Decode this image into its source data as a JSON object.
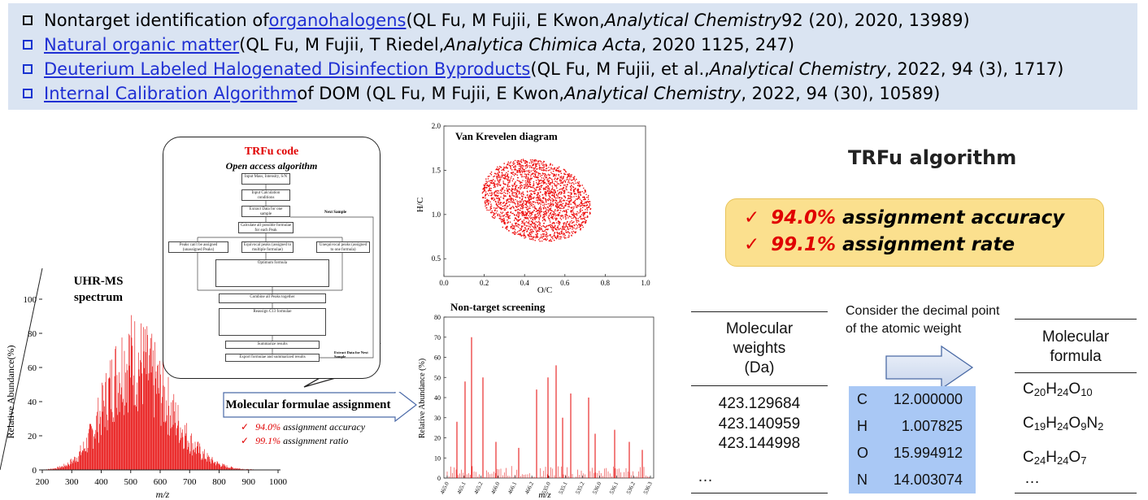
{
  "references": [
    {
      "link": "organohalogens",
      "pre": "Nontarget identification of ",
      "post_a": " (QL Fu, M Fujii, E Kwon, ",
      "journal": "Analytical Chemistry",
      "post_b": " 92 (20), 2020, 13989)"
    },
    {
      "link": "Natural organic matter ",
      "pre": "",
      "post_a": "(QL Fu, M Fujii, T Riedel, ",
      "journal": "Analytica Chimica Acta",
      "post_b": ", 2020 1125, 247)"
    },
    {
      "link": "Deuterium Labeled Halogenated Disinfection Byproducts ",
      "pre": "",
      "post_a": "(QL Fu, M Fujii, et al., ",
      "journal": "Analytical Chemistry",
      "post_b": ", 2022, 94 (3), 1717)"
    },
    {
      "link": "Internal Calibration Algorithm ",
      "pre": "",
      "post_a": "of DOM (QL Fu, M Fujii, E Kwon, ",
      "journal": "Analytical Chemistry",
      "post_b": " , 2022, 94 (30), 10589)"
    }
  ],
  "colors": {
    "link": "#1f2fd3",
    "ref_bg": "#dae4f2",
    "red": "#e00000",
    "algo_bg": "#fbe08e",
    "elem_bg": "#a9c8f5"
  },
  "spectrum": {
    "title_line1": "UHR-MS",
    "title_line2": "spectrum",
    "ylabel": "Relative Abundance(%)",
    "xlabel": "m/z",
    "x_ticks": [
      "200",
      "300",
      "400",
      "500",
      "600",
      "700",
      "800",
      "900",
      "1000"
    ],
    "y_ticks": [
      "0",
      "20",
      "40",
      "60",
      "80",
      "100"
    ]
  },
  "workflow": {
    "title": "TRFu code",
    "subtitle": "Open access algorithm",
    "next_sample": "Next Sample",
    "extract_next": "Extract Data for Next Sample",
    "steps": [
      "Input Mass, Intensity, S/N",
      "Input Calculation conditions",
      "Extract Data for one sample",
      "Calculate all possible formulae for each Peak",
      "Peaks can't be assigned (unassigned Peaks)",
      "Equivocal peaks (assigned to multiple formulae)",
      "Unequivocal peaks (assigned to one formula)",
      "Optimum formula",
      "Combine all Peaks together",
      "Reassign C13 formulae",
      "Summarize results",
      "Export formulae and summarized results"
    ]
  },
  "assignment": {
    "label": "Molecular formulae assignment",
    "check1_red": "94.0%",
    "check1_text": " assignment accuracy",
    "check2_red": "99.1%",
    "check2_text": " assignment ratio"
  },
  "van_krevelen": {
    "title": "Van Krevelen diagram",
    "xlabel": "O/C",
    "ylabel": "H/C",
    "x_ticks": [
      "0.0",
      "0.2",
      "0.4",
      "0.6",
      "0.8",
      "1.0"
    ],
    "y_ticks": [
      "0.5",
      "1.0",
      "1.5",
      "2.0"
    ]
  },
  "screening": {
    "title": "Non-target screening",
    "ylabel": "Relative Abundance (%)",
    "xlabel": "m/z",
    "y_ticks": [
      "0",
      "10",
      "20",
      "30",
      "40",
      "50",
      "60",
      "70",
      "80"
    ],
    "x_ticks": [
      "465.0",
      "465.1",
      "465.2",
      "466.0",
      "466.1",
      "466.2",
      "535.0",
      "535.1",
      "535.2",
      "536.0",
      "536.1",
      "536.2",
      "536.3"
    ]
  },
  "algorithm": {
    "title": "TRFu algorithm",
    "line1_red": "94.0%",
    "line1_text": " assignment accuracy",
    "line2_red": "99.1%",
    "line2_text": " assignment rate"
  },
  "table": {
    "mw_header_1": "Molecular",
    "mw_header_2": "weights",
    "mw_header_3": "(Da)",
    "weights": [
      "423.129684",
      "423.140959",
      "423.144998"
    ],
    "ellipsis": "…",
    "decimal_note_1": "Consider the decimal point",
    "decimal_note_2": "of the atomic weight",
    "elements": [
      {
        "symbol": "C",
        "mass": "12.000000"
      },
      {
        "symbol": "H",
        "mass": "1.007825"
      },
      {
        "symbol": "O",
        "mass": "15.994912"
      },
      {
        "symbol": "N",
        "mass": "14.003074"
      }
    ],
    "formula_header_1": "Molecular",
    "formula_header_2": "formula",
    "formulas": [
      [
        {
          "t": "C",
          "s": "20"
        },
        {
          "t": "H",
          "s": "24"
        },
        {
          "t": "O",
          "s": "10"
        }
      ],
      [
        {
          "t": "C",
          "s": "19"
        },
        {
          "t": "H",
          "s": "24"
        },
        {
          "t": "O",
          "s": "9"
        },
        {
          "t": "N",
          "s": "2"
        }
      ],
      [
        {
          "t": "C",
          "s": "24"
        },
        {
          "t": "H",
          "s": "24"
        },
        {
          "t": "O",
          "s": "7"
        }
      ]
    ]
  }
}
